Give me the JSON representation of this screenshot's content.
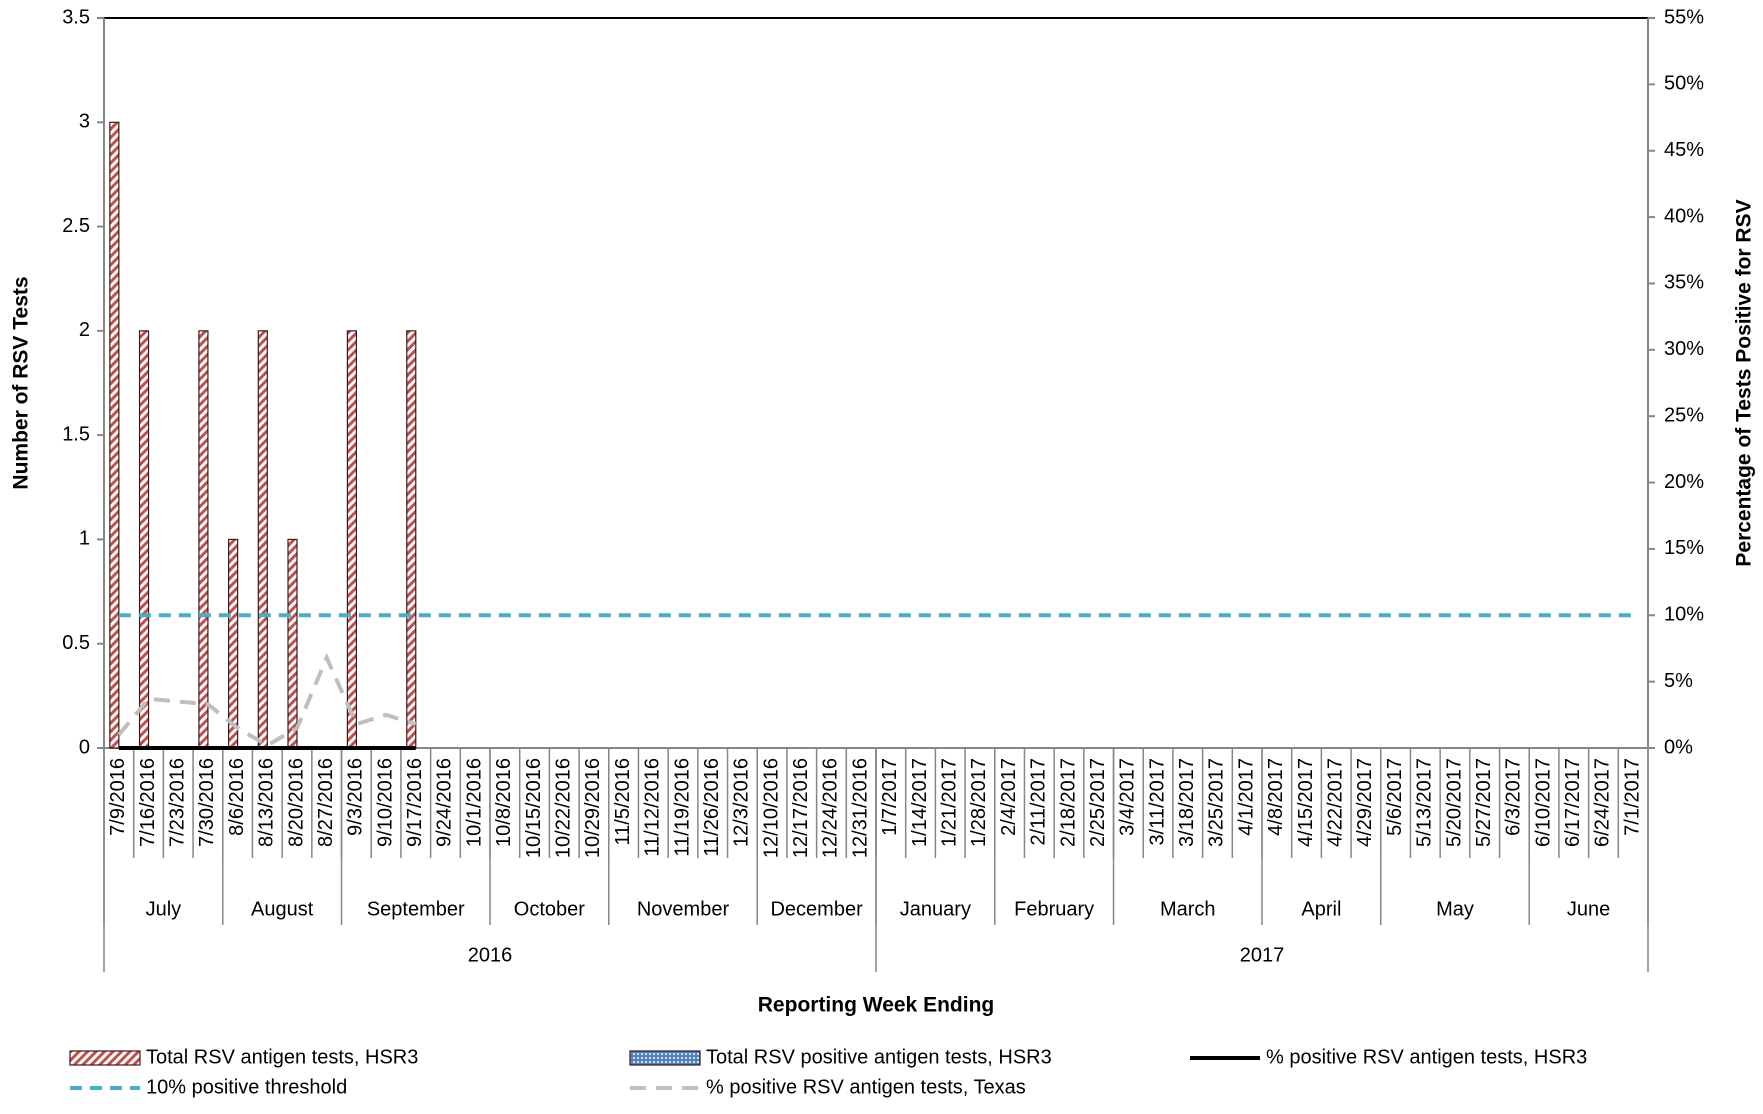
{
  "chart_data": {
    "type": "bar",
    "xlabel": "Reporting Week Ending",
    "ylabel": "Number of RSV Tests",
    "y2label": "Percentage of Tests Positive for RSV",
    "categories": [
      "7/9/2016",
      "7/16/2016",
      "7/23/2016",
      "7/30/2016",
      "8/6/2016",
      "8/13/2016",
      "8/20/2016",
      "8/27/2016",
      "9/3/2016",
      "9/10/2016",
      "9/17/2016",
      "9/24/2016",
      "10/1/2016",
      "10/8/2016",
      "10/15/2016",
      "10/22/2016",
      "10/29/2016",
      "11/5/2016",
      "11/12/2016",
      "11/19/2016",
      "11/26/2016",
      "12/3/2016",
      "12/10/2016",
      "12/17/2016",
      "12/24/2016",
      "12/31/2016",
      "1/7/2017",
      "1/14/2017",
      "1/21/2017",
      "1/28/2017",
      "2/4/2017",
      "2/11/2017",
      "2/18/2017",
      "2/25/2017",
      "3/4/2017",
      "3/11/2017",
      "3/18/2017",
      "3/25/2017",
      "4/1/2017",
      "4/8/2017",
      "4/15/2017",
      "4/22/2017",
      "4/29/2017",
      "5/6/2017",
      "5/13/2017",
      "5/20/2017",
      "5/27/2017",
      "6/3/2017",
      "6/10/2017",
      "6/17/2017",
      "6/24/2017",
      "7/1/2017"
    ],
    "month_groups": [
      {
        "label": "July",
        "span": 4
      },
      {
        "label": "August",
        "span": 4
      },
      {
        "label": "September",
        "span": 5
      },
      {
        "label": "October",
        "span": 4
      },
      {
        "label": "November",
        "span": 5
      },
      {
        "label": "December",
        "span": 4
      },
      {
        "label": "January",
        "span": 4
      },
      {
        "label": "February",
        "span": 4
      },
      {
        "label": "March",
        "span": 5
      },
      {
        "label": "April",
        "span": 4
      },
      {
        "label": "May",
        "span": 5
      },
      {
        "label": "June",
        "span": 4
      }
    ],
    "year_groups": [
      {
        "label": "2016",
        "span": 26
      },
      {
        "label": "2017",
        "span": 26
      }
    ],
    "ylim": [
      0,
      3.5
    ],
    "yticks": [
      0,
      0.5,
      1,
      1.5,
      2,
      2.5,
      3,
      3.5
    ],
    "y2lim": [
      0,
      55
    ],
    "y2ticks": [
      {
        "value": 0,
        "label": "0%"
      },
      {
        "value": 5,
        "label": "5%"
      },
      {
        "value": 10,
        "label": "10%"
      },
      {
        "value": 15,
        "label": "15%"
      },
      {
        "value": 20,
        "label": "20%"
      },
      {
        "value": 25,
        "label": "25%"
      },
      {
        "value": 30,
        "label": "30%"
      },
      {
        "value": 35,
        "label": "35%"
      },
      {
        "value": 40,
        "label": "40%"
      },
      {
        "value": 45,
        "label": "45%"
      },
      {
        "value": 50,
        "label": "50%"
      },
      {
        "value": 55,
        "label": "55%"
      }
    ],
    "series": [
      {
        "name": "Total RSV antigen tests, HSR3",
        "kind": "bar",
        "color": "#c0504d",
        "values": [
          3,
          2,
          0,
          2,
          1,
          2,
          1,
          0,
          2,
          0,
          2,
          null,
          null,
          null,
          null,
          null,
          null,
          null,
          null,
          null,
          null,
          null,
          null,
          null,
          null,
          null,
          null,
          null,
          null,
          null,
          null,
          null,
          null,
          null,
          null,
          null,
          null,
          null,
          null,
          null,
          null,
          null,
          null,
          null,
          null,
          null,
          null,
          null,
          null,
          null,
          null,
          null
        ]
      },
      {
        "name": "Total RSV positive antigen tests, HSR3",
        "kind": "bar",
        "color": "#4f81bd",
        "values": [
          0,
          0,
          0,
          0,
          0,
          0,
          0,
          0,
          0,
          0,
          0,
          null,
          null,
          null,
          null,
          null,
          null,
          null,
          null,
          null,
          null,
          null,
          null,
          null,
          null,
          null,
          null,
          null,
          null,
          null,
          null,
          null,
          null,
          null,
          null,
          null,
          null,
          null,
          null,
          null,
          null,
          null,
          null,
          null,
          null,
          null,
          null,
          null,
          null,
          null,
          null,
          null
        ]
      },
      {
        "name": "% positive RSV antigen tests, HSR3",
        "kind": "line",
        "axis": "y2",
        "color": "#000000",
        "dash": "none",
        "values": [
          0,
          0,
          0,
          0,
          0,
          0,
          0,
          0,
          0,
          0,
          0,
          null,
          null,
          null,
          null,
          null,
          null,
          null,
          null,
          null,
          null,
          null,
          null,
          null,
          null,
          null,
          null,
          null,
          null,
          null,
          null,
          null,
          null,
          null,
          null,
          null,
          null,
          null,
          null,
          null,
          null,
          null,
          null,
          null,
          null,
          null,
          null,
          null,
          null,
          null,
          null,
          null
        ]
      },
      {
        "name": "10% positive threshold",
        "kind": "line",
        "axis": "y2",
        "color": "#4bacc6",
        "dash": "12 8",
        "values": [
          10,
          10,
          10,
          10,
          10,
          10,
          10,
          10,
          10,
          10,
          10,
          10,
          10,
          10,
          10,
          10,
          10,
          10,
          10,
          10,
          10,
          10,
          10,
          10,
          10,
          10,
          10,
          10,
          10,
          10,
          10,
          10,
          10,
          10,
          10,
          10,
          10,
          10,
          10,
          10,
          10,
          10,
          10,
          10,
          10,
          10,
          10,
          10,
          10,
          10,
          10,
          10
        ]
      },
      {
        "name": "% positive RSV antigen tests, Texas",
        "kind": "line",
        "axis": "y2",
        "color": "#bfbfbf",
        "dash": "16 10",
        "values": [
          1,
          3.7,
          3.5,
          3.3,
          1.5,
          0.2,
          1.5,
          6.8,
          1.8,
          2.5,
          1.8,
          null,
          null,
          null,
          null,
          null,
          null,
          null,
          null,
          null,
          null,
          null,
          null,
          null,
          null,
          null,
          null,
          null,
          null,
          null,
          null,
          null,
          null,
          null,
          null,
          null,
          null,
          null,
          null,
          null,
          null,
          null,
          null,
          null,
          null,
          null,
          null,
          null,
          null,
          null,
          null,
          null
        ]
      }
    ]
  }
}
